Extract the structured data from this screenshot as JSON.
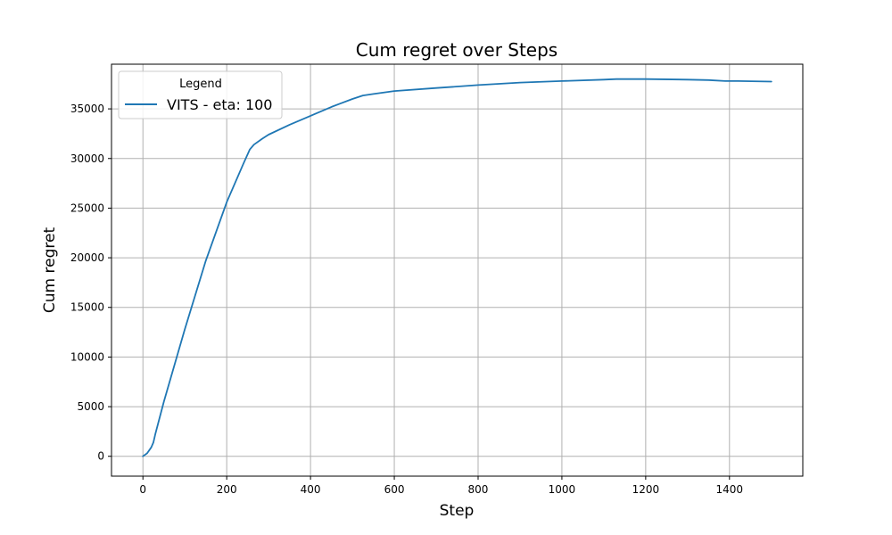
{
  "chart_data": {
    "type": "line",
    "title": "Cum regret over Steps",
    "xlabel": "Step",
    "ylabel": "Cum regret",
    "xlim": [
      -75,
      1575
    ],
    "ylim": [
      -2000,
      39500
    ],
    "xticks": [
      0,
      200,
      400,
      600,
      800,
      1000,
      1200,
      1400
    ],
    "yticks": [
      0,
      5000,
      10000,
      15000,
      20000,
      25000,
      30000,
      35000
    ],
    "grid": true,
    "legend": {
      "title": "Legend",
      "placement": "top-left"
    },
    "series": [
      {
        "name": "VITS - eta: 100",
        "color": "#1f77b4",
        "x": [
          0,
          10,
          20,
          25,
          30,
          50,
          100,
          150,
          200,
          240,
          255,
          265,
          285,
          300,
          350,
          400,
          450,
          500,
          525,
          550,
          600,
          700,
          800,
          900,
          1000,
          1100,
          1130,
          1200,
          1300,
          1350,
          1390,
          1420,
          1500
        ],
        "y": [
          0,
          300,
          900,
          1400,
          2300,
          5500,
          12800,
          19700,
          25600,
          29500,
          30900,
          31400,
          32000,
          32400,
          33400,
          34300,
          35200,
          36000,
          36350,
          36500,
          36800,
          37100,
          37400,
          37650,
          37800,
          37950,
          38000,
          38000,
          37950,
          37900,
          37800,
          37800,
          37750
        ]
      }
    ]
  }
}
